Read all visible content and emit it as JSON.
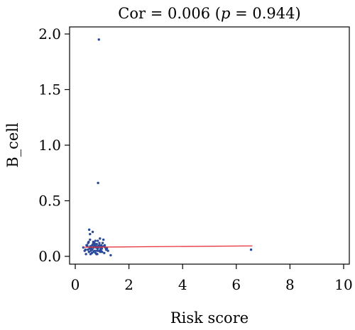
{
  "chart_data": {
    "type": "scatter",
    "title": {
      "prefix": "Cor = 0.006 (",
      "p_symbol": "p",
      "suffix": " = 0.944)"
    },
    "xlabel": "Risk score",
    "ylabel": "B_cell",
    "xlim": [
      0,
      10
    ],
    "ylim": [
      0,
      2.0
    ],
    "xticks": [
      0,
      2,
      4,
      6,
      8,
      10
    ],
    "xtick_labels": [
      "0",
      "2",
      "4",
      "6",
      "8",
      "10"
    ],
    "yticks": [
      0.0,
      0.5,
      1.0,
      1.5,
      2.0
    ],
    "ytick_labels": [
      "0.0",
      "0.5",
      "1.0",
      "1.5",
      "2.0"
    ],
    "grid": false,
    "point_color": "#2b4a9a",
    "line_color": "#e8303a",
    "regression_line": {
      "x": [
        0.3,
        6.6
      ],
      "y": [
        0.082,
        0.094
      ]
    },
    "points": {
      "x": [
        0.88,
        0.85,
        0.52,
        0.4,
        0.35,
        0.55,
        0.65,
        0.92,
        1.05,
        1.22,
        1.32,
        6.55,
        0.3,
        0.42,
        0.48,
        0.58,
        0.62,
        0.7,
        0.75,
        0.8,
        0.95,
        1.0,
        1.1,
        1.15,
        0.45,
        0.5,
        0.6,
        0.68,
        0.72,
        0.78,
        0.82,
        0.9,
        0.98,
        1.08,
        1.18,
        0.38,
        0.55,
        0.63,
        0.73,
        0.85,
        0.93,
        1.02,
        1.12,
        0.47,
        0.57,
        0.67,
        0.77,
        0.87,
        0.97,
        0.53,
        0.66,
        0.76,
        0.84,
        0.94,
        0.61,
        0.71,
        0.81,
        0.91,
        0.44,
        0.59,
        0.69,
        0.79,
        0.89,
        0.99,
        1.06,
        0.51,
        0.64,
        0.74,
        0.86,
        0.96,
        0.56,
        0.83
      ],
      "y": [
        1.95,
        0.66,
        0.24,
        0.02,
        0.05,
        0.2,
        0.22,
        0.16,
        0.15,
        0.05,
        0.01,
        0.06,
        0.08,
        0.1,
        0.12,
        0.05,
        0.03,
        0.09,
        0.14,
        0.11,
        0.07,
        0.04,
        0.1,
        0.06,
        0.09,
        0.13,
        0.07,
        0.04,
        0.11,
        0.08,
        0.02,
        0.12,
        0.09,
        0.03,
        0.07,
        0.06,
        0.15,
        0.1,
        0.05,
        0.09,
        0.04,
        0.12,
        0.08,
        0.06,
        0.02,
        0.13,
        0.09,
        0.05,
        0.1,
        0.07,
        0.11,
        0.03,
        0.14,
        0.06,
        0.08,
        0.12,
        0.05,
        0.09,
        0.1,
        0.06,
        0.08,
        0.02,
        0.1,
        0.07,
        0.09,
        0.04,
        0.06,
        0.11,
        0.08,
        0.05,
        0.09,
        0.07
      ]
    }
  }
}
